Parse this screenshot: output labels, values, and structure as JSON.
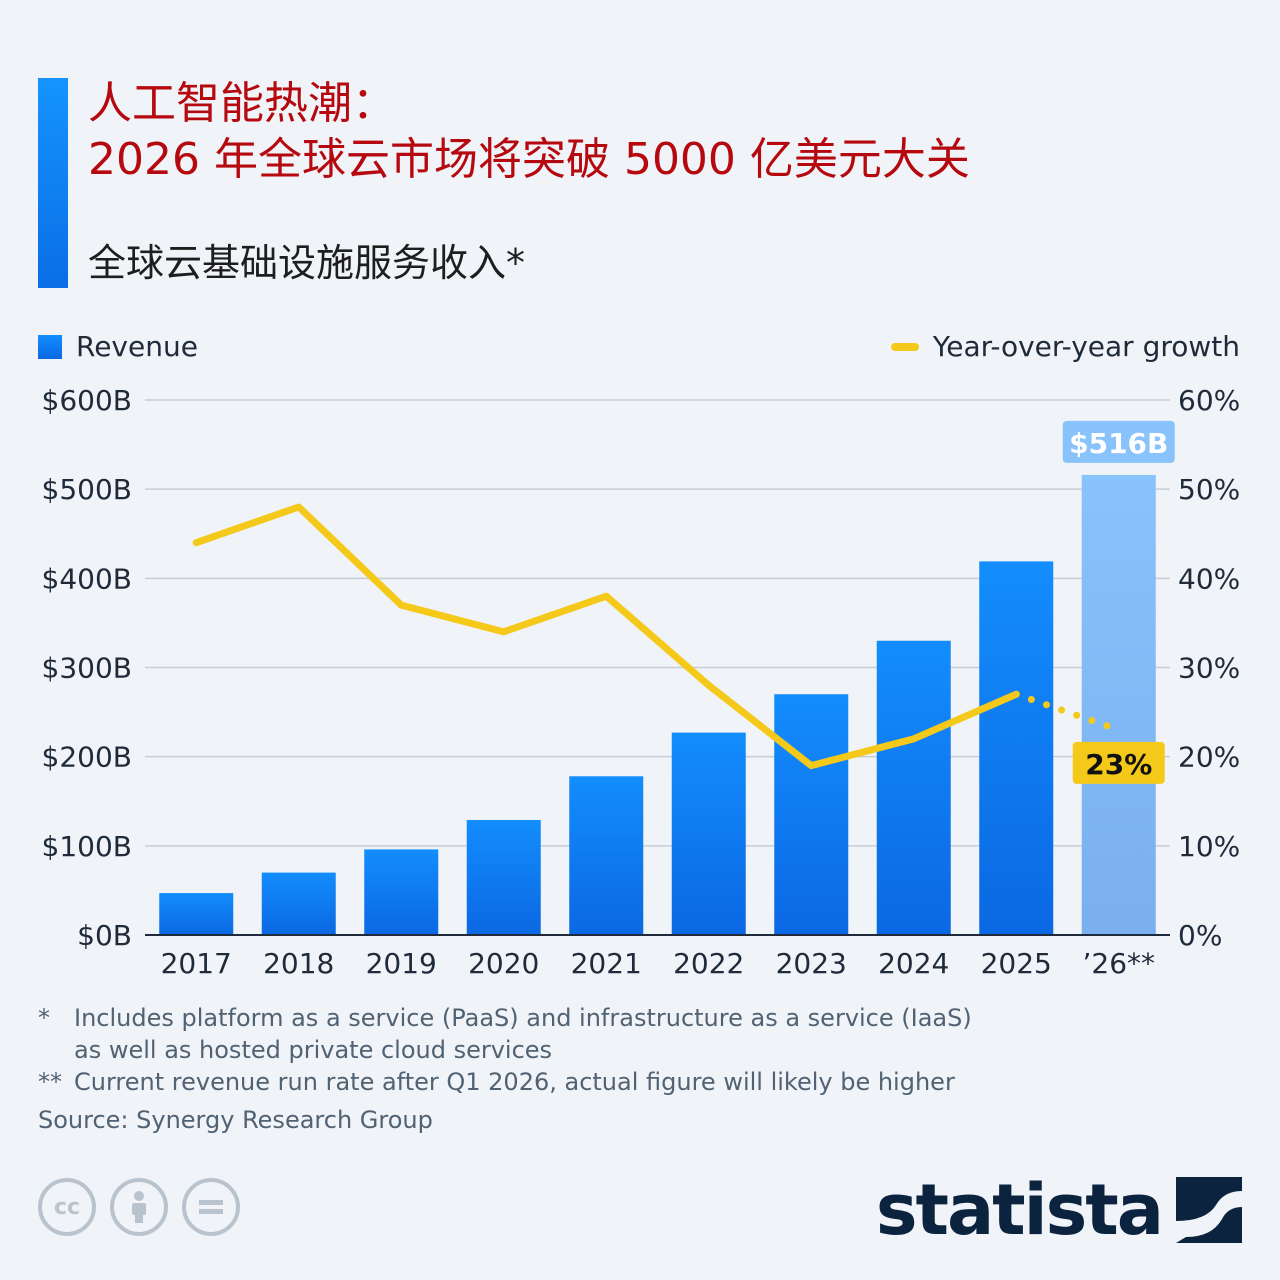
{
  "header": {
    "title_line1": "人工智能热潮：",
    "title_line2": "2026 年全球云市场将突破 5000 亿美元大关",
    "subtitle": "全球云基础设施服务收入*"
  },
  "legend": {
    "revenue_label": "Revenue",
    "growth_label": "Year-over-year growth"
  },
  "colors": {
    "accent": "#0a6ee6",
    "bar_top": "#138dfd",
    "bar_bottom": "#0b68e3",
    "bar_projected_top": "#88c3fb",
    "bar_projected_bottom": "#7aaff0",
    "growth_line": "#f5c919",
    "title_red": "#b5090f",
    "brand_navy": "#0c2340"
  },
  "chart_data": {
    "type": "bar",
    "categories": [
      "2017",
      "2018",
      "2019",
      "2020",
      "2021",
      "2022",
      "2023",
      "2024",
      "2025",
      "’26**"
    ],
    "series": [
      {
        "name": "Revenue",
        "type": "bar",
        "axis": "left",
        "unit": "$B",
        "values": [
          47,
          70,
          96,
          129,
          178,
          227,
          270,
          330,
          419,
          516
        ]
      },
      {
        "name": "Year-over-year growth",
        "type": "line",
        "axis": "right",
        "unit": "%",
        "values": [
          44,
          48,
          37,
          34,
          38,
          28,
          19,
          22,
          27,
          23
        ],
        "projected_from_index": 8
      }
    ],
    "y_left": {
      "ticks": [
        "$0B",
        "$100B",
        "$200B",
        "$300B",
        "$400B",
        "$500B",
        "$600B"
      ],
      "ylim": [
        0,
        600
      ]
    },
    "y_right": {
      "ticks": [
        "0%",
        "10%",
        "20%",
        "30%",
        "40%",
        "50%",
        "60%"
      ],
      "ylim": [
        0,
        60
      ]
    },
    "projected_index": 9,
    "annotations": {
      "bar_label": "$516B",
      "growth_label": "23%"
    },
    "grid": true
  },
  "footnotes": {
    "note1_mark": "*",
    "note1_line1": "Includes platform as a service (PaaS) and infrastructure as a service (IaaS)",
    "note1_line2": "as well as hosted private cloud services",
    "note2_mark": "**",
    "note2_text": "Current revenue run rate after Q1 2026, actual figure will likely be higher",
    "source": "Source: Synergy Research Group"
  },
  "license_icons": [
    "cc-icon",
    "attribution-icon",
    "no-derivatives-icon"
  ],
  "brand": {
    "name": "statista"
  }
}
